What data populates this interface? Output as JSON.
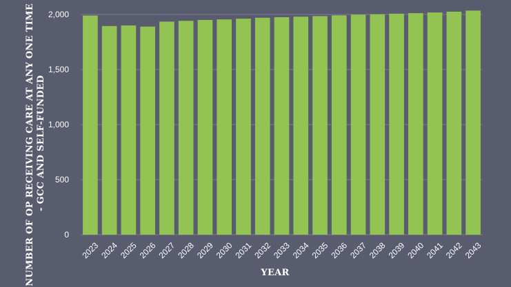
{
  "chart_data": {
    "type": "bar",
    "categories": [
      "2023",
      "2024",
      "2025",
      "2026",
      "2027",
      "2028",
      "2029",
      "2030",
      "2031",
      "2032",
      "2033",
      "2034",
      "2035",
      "2036",
      "2037",
      "2038",
      "2039",
      "2040",
      "2041",
      "2042",
      "2043"
    ],
    "values": [
      1990,
      1895,
      1900,
      1890,
      1935,
      1942,
      1950,
      1955,
      1962,
      1970,
      1975,
      1980,
      1985,
      1992,
      1998,
      2002,
      2007,
      2012,
      2018,
      2025,
      2035
    ],
    "xlabel": "YEAR",
    "ylabel_lines": [
      "NUMBER OF OP RECEIVING CARE AT ANY ONE TIME",
      "- GCC AND SELF-FUNDED"
    ],
    "ylim": [
      0,
      2000
    ],
    "yticks": [
      0,
      500,
      1000,
      1500,
      2000
    ],
    "ytick_labels": [
      "0",
      "500",
      "1,000",
      "1,500",
      "2,000"
    ],
    "grid": true,
    "legend": "none",
    "colors": {
      "bar": "#92c353",
      "background": "#585c6e",
      "grid": "#7a7e8e",
      "text": "#ffffff"
    }
  }
}
